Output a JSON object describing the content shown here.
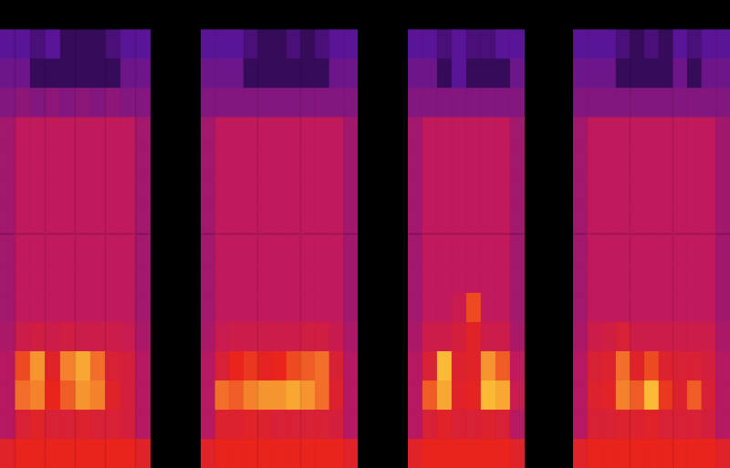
{
  "chart_data": {
    "type": "heatmap",
    "tick_labels": false,
    "grid": false,
    "zlim": [
      0,
      4
    ],
    "panels": [
      {
        "cells": [
          [
            0,
            0,
            0,
            0,
            0,
            0,
            0,
            0,
            0,
            0
          ],
          [
            1,
            1,
            0.8,
            1,
            0.6,
            0.6,
            0.6,
            0.8,
            1,
            1
          ],
          [
            1.2,
            1.2,
            0.6,
            0.6,
            0.6,
            0.6,
            0.6,
            0.6,
            1.2,
            1.2
          ],
          [
            1.4,
            1.5,
            1.4,
            1.5,
            1.4,
            1.5,
            1.4,
            1.5,
            1.4,
            1.4
          ],
          [
            1.7,
            2,
            2,
            2,
            2,
            2,
            2,
            2,
            2,
            1.7
          ],
          [
            1.7,
            2,
            2,
            2,
            2,
            2,
            2,
            2,
            2,
            1.7
          ],
          [
            1.7,
            2,
            2,
            2,
            2,
            2,
            2,
            2,
            2,
            1.7
          ],
          [
            1.7,
            2,
            2,
            2,
            2,
            2,
            2,
            2,
            2,
            1.7
          ],
          [
            1.7,
            2,
            2,
            2,
            2,
            2,
            2,
            2,
            2,
            1.7
          ],
          [
            1.7,
            2,
            2,
            2,
            2,
            2,
            2,
            2,
            2,
            1.7
          ],
          [
            1.7,
            2,
            2,
            2,
            2,
            2,
            2,
            2,
            2,
            1.7
          ],
          [
            1.8,
            2.3,
            2.4,
            2.3,
            2.4,
            2.3,
            2.3,
            2.3,
            2.2,
            1.8
          ],
          [
            1.9,
            3.2,
            3.6,
            2.8,
            3.5,
            3.7,
            3.4,
            2.6,
            2.5,
            1.9
          ],
          [
            1.9,
            3.4,
            3.5,
            3,
            3.3,
            3.6,
            3.5,
            2.8,
            2.5,
            1.9
          ],
          [
            1.9,
            2.6,
            2.8,
            2.6,
            2.6,
            2.7,
            2.6,
            2.6,
            2.5,
            1.9
          ],
          [
            2.8,
            3,
            3,
            3,
            3,
            3,
            3,
            3,
            3,
            2.8
          ]
        ]
      },
      {
        "cells": [
          [
            0,
            0,
            0,
            0,
            0,
            0,
            0,
            0,
            0,
            0,
            0
          ],
          [
            1,
            1,
            1,
            0.8,
            0.6,
            0.6,
            0.8,
            0.6,
            0.8,
            1,
            1
          ],
          [
            1.2,
            1.2,
            1.2,
            0.6,
            0.6,
            0.6,
            0.6,
            0.6,
            0.6,
            1.2,
            1.2
          ],
          [
            1.4,
            1.4,
            1.4,
            1.4,
            1.4,
            1.4,
            1.4,
            1.4,
            1.4,
            1.4,
            1.4
          ],
          [
            1.7,
            2,
            2,
            2,
            2,
            2,
            2,
            2,
            2,
            2,
            1.7
          ],
          [
            1.7,
            2,
            2,
            2,
            2,
            2,
            2,
            2,
            2,
            2,
            1.7
          ],
          [
            1.7,
            2,
            2,
            2,
            2,
            2,
            2,
            2,
            2,
            2,
            1.7
          ],
          [
            1.7,
            2,
            2,
            2,
            2,
            2,
            2,
            2,
            2,
            2,
            1.7
          ],
          [
            1.7,
            2,
            2,
            2,
            2,
            2,
            2,
            2,
            2,
            2,
            1.7
          ],
          [
            1.7,
            2,
            2,
            2,
            2,
            2,
            2,
            2,
            2,
            2,
            1.7
          ],
          [
            1.7,
            2,
            2,
            2,
            2,
            2,
            2,
            2,
            2,
            2,
            1.7
          ],
          [
            1.8,
            2.2,
            2.3,
            2.3,
            2.3,
            2.3,
            2.3,
            2.4,
            2.4,
            2.2,
            1.8
          ],
          [
            1.9,
            2.6,
            3,
            3.1,
            2.9,
            3,
            3.2,
            3.3,
            3.4,
            2.6,
            1.9
          ],
          [
            1.9,
            3.4,
            3.3,
            3.5,
            3.6,
            3.6,
            3.7,
            3.6,
            3.4,
            2.7,
            1.9
          ],
          [
            1.9,
            2.7,
            2.7,
            2.8,
            2.7,
            2.6,
            2.6,
            2.6,
            2.6,
            2.5,
            1.9
          ],
          [
            2.8,
            3,
            3,
            3,
            3,
            3,
            3,
            3,
            3,
            3,
            2.8
          ]
        ]
      },
      {
        "cells": [
          [
            0,
            0,
            0,
            0,
            0,
            0,
            0,
            0
          ],
          [
            1,
            1,
            0.8,
            1,
            0.8,
            0.8,
            1,
            1
          ],
          [
            1.2,
            1.2,
            0.6,
            1,
            0.6,
            0.6,
            0.6,
            1.2
          ],
          [
            1.4,
            1.4,
            1.4,
            1.4,
            1.4,
            1.4,
            1.4,
            1.4
          ],
          [
            1.7,
            2,
            2,
            2,
            2,
            2,
            2,
            1.7
          ],
          [
            1.7,
            2,
            2,
            2,
            2,
            2,
            2,
            1.7
          ],
          [
            1.7,
            2,
            2,
            2,
            2,
            2,
            2,
            1.7
          ],
          [
            1.7,
            2,
            2,
            2,
            2,
            2,
            2,
            1.7
          ],
          [
            1.7,
            2,
            2,
            2,
            2,
            2,
            2,
            1.7
          ],
          [
            1.7,
            2,
            2,
            2,
            2,
            2,
            2,
            1.7
          ],
          [
            1.7,
            2,
            2,
            2.2,
            3.2,
            2,
            2,
            1.7
          ],
          [
            1.8,
            2.3,
            2.3,
            2.5,
            2.8,
            2.3,
            2.3,
            1.8
          ],
          [
            1.9,
            2.6,
            3.8,
            2.7,
            2.8,
            3.6,
            3.3,
            2
          ],
          [
            1.9,
            3.3,
            3.7,
            2.8,
            2.9,
            3.8,
            3.7,
            2.2
          ],
          [
            1.9,
            2.6,
            2.8,
            2.6,
            2.6,
            2.7,
            2.6,
            1.9
          ],
          [
            2.8,
            3,
            3,
            3,
            3,
            3,
            3,
            2.8
          ]
        ]
      },
      {
        "cells": [
          [
            0,
            0,
            0,
            0,
            0,
            0,
            0,
            0,
            0,
            0,
            0
          ],
          [
            1,
            1,
            1,
            0.8,
            0.6,
            0.8,
            0.6,
            1,
            0.8,
            1,
            1
          ],
          [
            1.2,
            1.2,
            1.2,
            0.6,
            0.6,
            0.6,
            0.6,
            1.2,
            0.6,
            1.2,
            1.2
          ],
          [
            1.4,
            1.4,
            1.4,
            1.4,
            1.4,
            1.4,
            1.4,
            1.4,
            1.4,
            1.4,
            1.4
          ],
          [
            1.7,
            2,
            2,
            2,
            2,
            2,
            2,
            2,
            2,
            2,
            1.7
          ],
          [
            1.7,
            2,
            2,
            2,
            2,
            2,
            2,
            2,
            2,
            2,
            1.7
          ],
          [
            1.7,
            2,
            2,
            2,
            2,
            2,
            2,
            2,
            2,
            2,
            1.7
          ],
          [
            1.7,
            2,
            2,
            2,
            2,
            2,
            2,
            2,
            2,
            2,
            1.7
          ],
          [
            1.7,
            2,
            2,
            2,
            2,
            2,
            2,
            2,
            2,
            2,
            1.7
          ],
          [
            1.7,
            2,
            2,
            2,
            2,
            2,
            2,
            2,
            2,
            2,
            1.7
          ],
          [
            1.7,
            2,
            2,
            2,
            2,
            2,
            2,
            2,
            2,
            2,
            1.7
          ],
          [
            1.8,
            2.3,
            2.4,
            2.6,
            2.3,
            2.3,
            2.3,
            2.3,
            2.3,
            2.3,
            1.8
          ],
          [
            1.9,
            2.6,
            2.7,
            3.4,
            2.8,
            3.2,
            2.7,
            2.6,
            2.6,
            2.5,
            1.9
          ],
          [
            1.9,
            2.7,
            2.8,
            3.5,
            3.3,
            3.8,
            3.1,
            2.7,
            3.3,
            2.6,
            1.9
          ],
          [
            1.9,
            2.6,
            2.6,
            2.7,
            2.7,
            2.8,
            2.6,
            2.6,
            2.6,
            2.5,
            1.9
          ],
          [
            2.8,
            3,
            3,
            3,
            3,
            3,
            3,
            3,
            3,
            3,
            2.8
          ]
        ]
      }
    ]
  }
}
